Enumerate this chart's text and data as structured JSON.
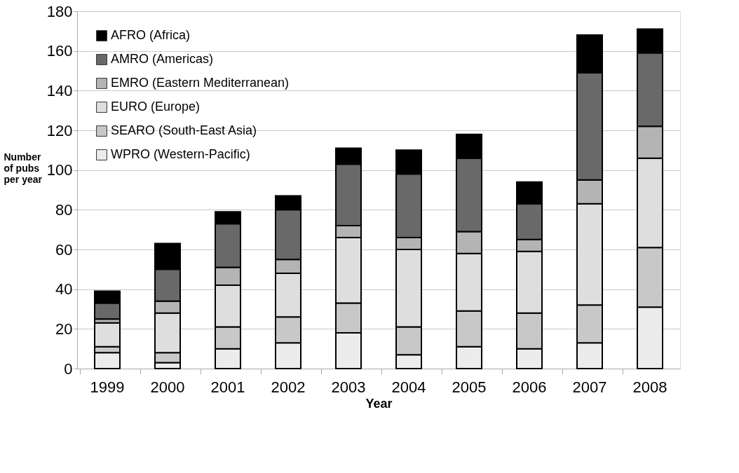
{
  "chart_data": {
    "type": "bar",
    "stacked": true,
    "xlabel": "Year",
    "ylabel": "Number of pubs per year",
    "categories": [
      "1999",
      "2000",
      "2001",
      "2002",
      "2003",
      "2004",
      "2005",
      "2006",
      "2007",
      "2008"
    ],
    "series": [
      {
        "name": "WPRO (Western-Pacific)",
        "color": "#ececec",
        "values": [
          8,
          3,
          10,
          13,
          18,
          7,
          11,
          10,
          13,
          31
        ]
      },
      {
        "name": "SEARO (South-East Asia)",
        "color": "#c8c8c8",
        "values": [
          3,
          5,
          11,
          13,
          15,
          14,
          18,
          18,
          19,
          30
        ]
      },
      {
        "name": "EURO (Europe)",
        "color": "#dedede",
        "values": [
          12,
          20,
          21,
          22,
          33,
          39,
          29,
          31,
          51,
          45
        ]
      },
      {
        "name": "EMRO (Eastern Mediterranean)",
        "color": "#b4b4b4",
        "values": [
          2,
          6,
          9,
          7,
          6,
          6,
          11,
          6,
          12,
          16
        ]
      },
      {
        "name": "AMRO (Americas)",
        "color": "#696969",
        "values": [
          8,
          16,
          22,
          25,
          31,
          32,
          37,
          18,
          54,
          37
        ]
      },
      {
        "name": "AFRO (Africa)",
        "color": "#000000",
        "values": [
          6,
          13,
          6,
          7,
          8,
          12,
          12,
          11,
          19,
          12
        ]
      }
    ],
    "ylim": [
      0,
      180
    ],
    "yticks": [
      0,
      20,
      40,
      60,
      80,
      100,
      120,
      140,
      160,
      180
    ],
    "grid": "y",
    "legend": "top left"
  }
}
